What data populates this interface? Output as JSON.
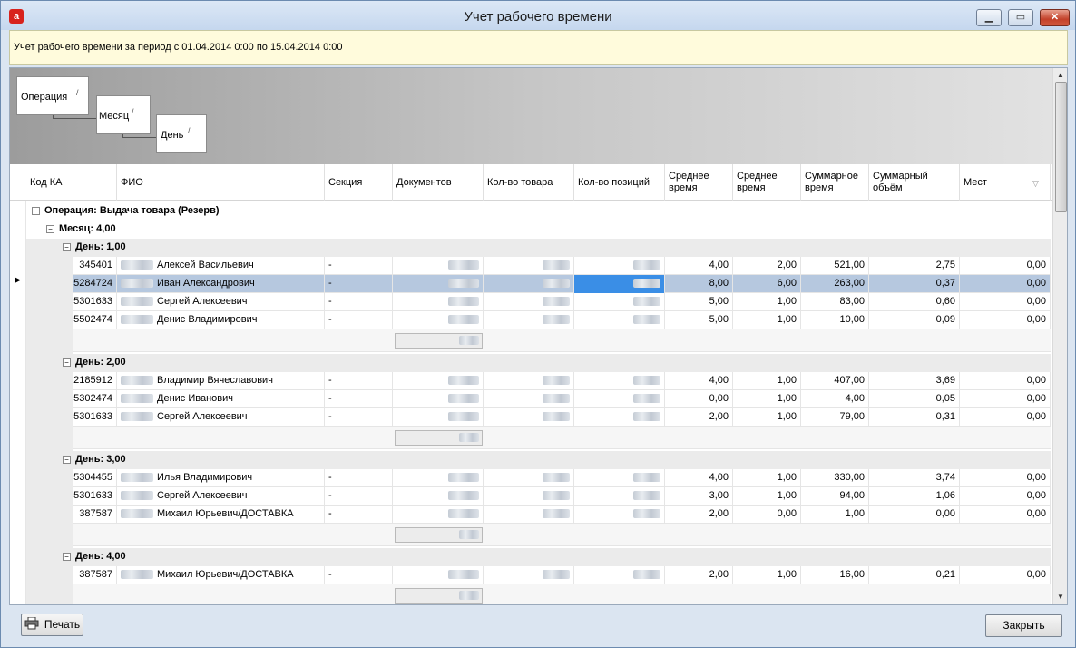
{
  "window": {
    "title": "Учет рабочего времени",
    "app_icon": "a",
    "minimize": "▁",
    "maximize": "▭",
    "close": "✕"
  },
  "info": {
    "text": "Учет рабочего времени за период с 01.04.2014 0:00 по 15.04.2014 0:00"
  },
  "grouping": {
    "levels": [
      {
        "label": "Операция",
        "sort": "/"
      },
      {
        "label": "Месяц",
        "sort": "/"
      },
      {
        "label": "День",
        "sort": "/"
      }
    ]
  },
  "columns": [
    "Код КА",
    "ФИО",
    "Секция",
    "Документов",
    "Кол-во товара",
    "Кол-во позиций",
    "Среднее время",
    "Среднее время",
    "Суммарное время",
    "Суммарный объём",
    "Мест"
  ],
  "sort_icon": "▽",
  "row_indicator": "▶",
  "groups": {
    "operation": "Операция: Выдача товара (Резерв)",
    "month": "Месяц: 4,00",
    "days": [
      {
        "label": "День: 1,00",
        "rows": [
          {
            "code": "345401",
            "name": "Алексей Васильевич",
            "section": "-",
            "avg1": "4,00",
            "avg2": "2,00",
            "sum_time": "521,00",
            "volume": "2,75",
            "places": "0,00"
          },
          {
            "code": "5284724",
            "name": "Иван Александрович",
            "section": "-",
            "avg1": "8,00",
            "avg2": "6,00",
            "sum_time": "263,00",
            "volume": "0,37",
            "places": "0,00",
            "selected": true
          },
          {
            "code": "5301633",
            "name": "Сергей Алексеевич",
            "section": "-",
            "avg1": "5,00",
            "avg2": "1,00",
            "sum_time": "83,00",
            "volume": "0,60",
            "places": "0,00"
          },
          {
            "code": "5502474",
            "name": "Денис Владимирович",
            "section": "-",
            "avg1": "5,00",
            "avg2": "1,00",
            "sum_time": "10,00",
            "volume": "0,09",
            "places": "0,00"
          }
        ]
      },
      {
        "label": "День: 2,00",
        "rows": [
          {
            "code": "2185912",
            "name": "Владимир Вячеславович",
            "section": "-",
            "avg1": "4,00",
            "avg2": "1,00",
            "sum_time": "407,00",
            "volume": "3,69",
            "places": "0,00"
          },
          {
            "code": "5302474",
            "name": "Денис Иванович",
            "section": "-",
            "avg1": "0,00",
            "avg2": "1,00",
            "sum_time": "4,00",
            "volume": "0,05",
            "places": "0,00"
          },
          {
            "code": "5301633",
            "name": "Сергей Алексеевич",
            "section": "-",
            "avg1": "2,00",
            "avg2": "1,00",
            "sum_time": "79,00",
            "volume": "0,31",
            "places": "0,00"
          }
        ]
      },
      {
        "label": "День: 3,00",
        "rows": [
          {
            "code": "5304455",
            "name": "Илья Владимирович",
            "section": "-",
            "avg1": "4,00",
            "avg2": "1,00",
            "sum_time": "330,00",
            "volume": "3,74",
            "places": "0,00"
          },
          {
            "code": "5301633",
            "name": "Сергей Алексеевич",
            "section": "-",
            "avg1": "3,00",
            "avg2": "1,00",
            "sum_time": "94,00",
            "volume": "1,06",
            "places": "0,00"
          },
          {
            "code": "387587",
            "name": "Михаил Юрьевич/ДОСТАВКА",
            "section": "-",
            "avg1": "2,00",
            "avg2": "0,00",
            "sum_time": "1,00",
            "volume": "0,00",
            "places": "0,00"
          }
        ]
      },
      {
        "label": "День: 4,00",
        "rows": [
          {
            "code": "387587",
            "name": "Михаил Юрьевич/ДОСТАВКА",
            "section": "-",
            "avg1": "2,00",
            "avg2": "1,00",
            "sum_time": "16,00",
            "volume": "0,21",
            "places": "0,00"
          }
        ]
      }
    ]
  },
  "buttons": {
    "print": "Печать",
    "close": "Закрыть"
  },
  "colors": {
    "selected_row": "#b6c8df",
    "focused_cell": "#3a8ee6",
    "info_bg": "#fffbdc"
  }
}
